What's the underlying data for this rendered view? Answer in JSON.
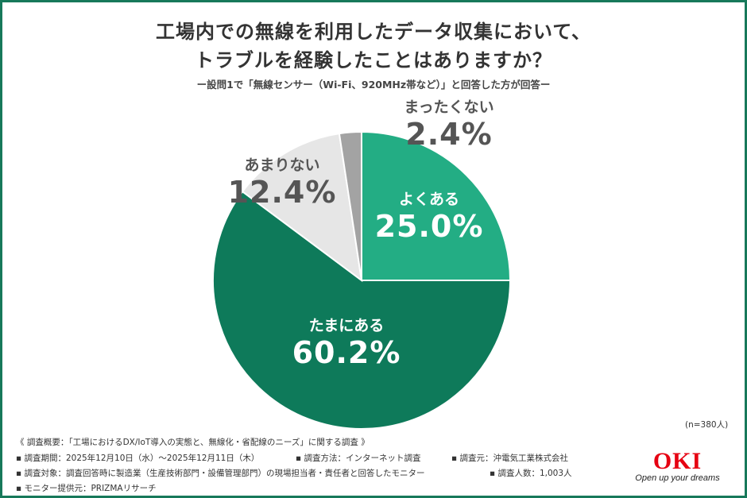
{
  "title_line1": "工場内での無線を利用したデータ収集において、",
  "title_line2": "トラブルを経験したことはありますか？",
  "subtitle": "ー設問1で「無線センサー（Wi-Fi、920MHz帯など）」と回答した方が回答ー",
  "n_label": "(n=380人)",
  "chart_data": {
    "type": "pie",
    "title": "工場内での無線を利用したデータ収集において、トラブルを経験したことはありますか？",
    "unit": "%",
    "slices": [
      {
        "label": "よくある",
        "value": 25.0,
        "display": "25.0%",
        "color": "#23ad84"
      },
      {
        "label": "たまにある",
        "value": 60.2,
        "display": "60.2%",
        "color": "#0e7a5a"
      },
      {
        "label": "あまりない",
        "value": 12.4,
        "display": "12.4%",
        "color": "#e6e6e6"
      },
      {
        "label": "まったくない",
        "value": 2.4,
        "display": "2.4%",
        "color": "#a3a3a3"
      }
    ],
    "start": "12 o'clock",
    "direction": "clockwise"
  },
  "footer": {
    "overview": "《 調査概要：「工場におけるDX/IoT導入の実態と、無線化・省配線のニーズ」に関する調査 》",
    "period": "▪ 調査期間：2025年12月10日（水）〜2025年12月11日（木）",
    "method": "▪ 調査方法：インターネット調査",
    "source": "▪ 調査元：沖電気工業株式会社",
    "target": "▪ 調査対象：調査回答時に製造業（生産技術部門・設備管理部門）の現場担当者・責任者と回答したモニター",
    "count": "▪ 調査人数：1,003人",
    "provider": "▪ モニター提供元：PRIZMAリサーチ"
  },
  "logo": {
    "name": "OKI",
    "tagline": "Open up your dreams"
  }
}
